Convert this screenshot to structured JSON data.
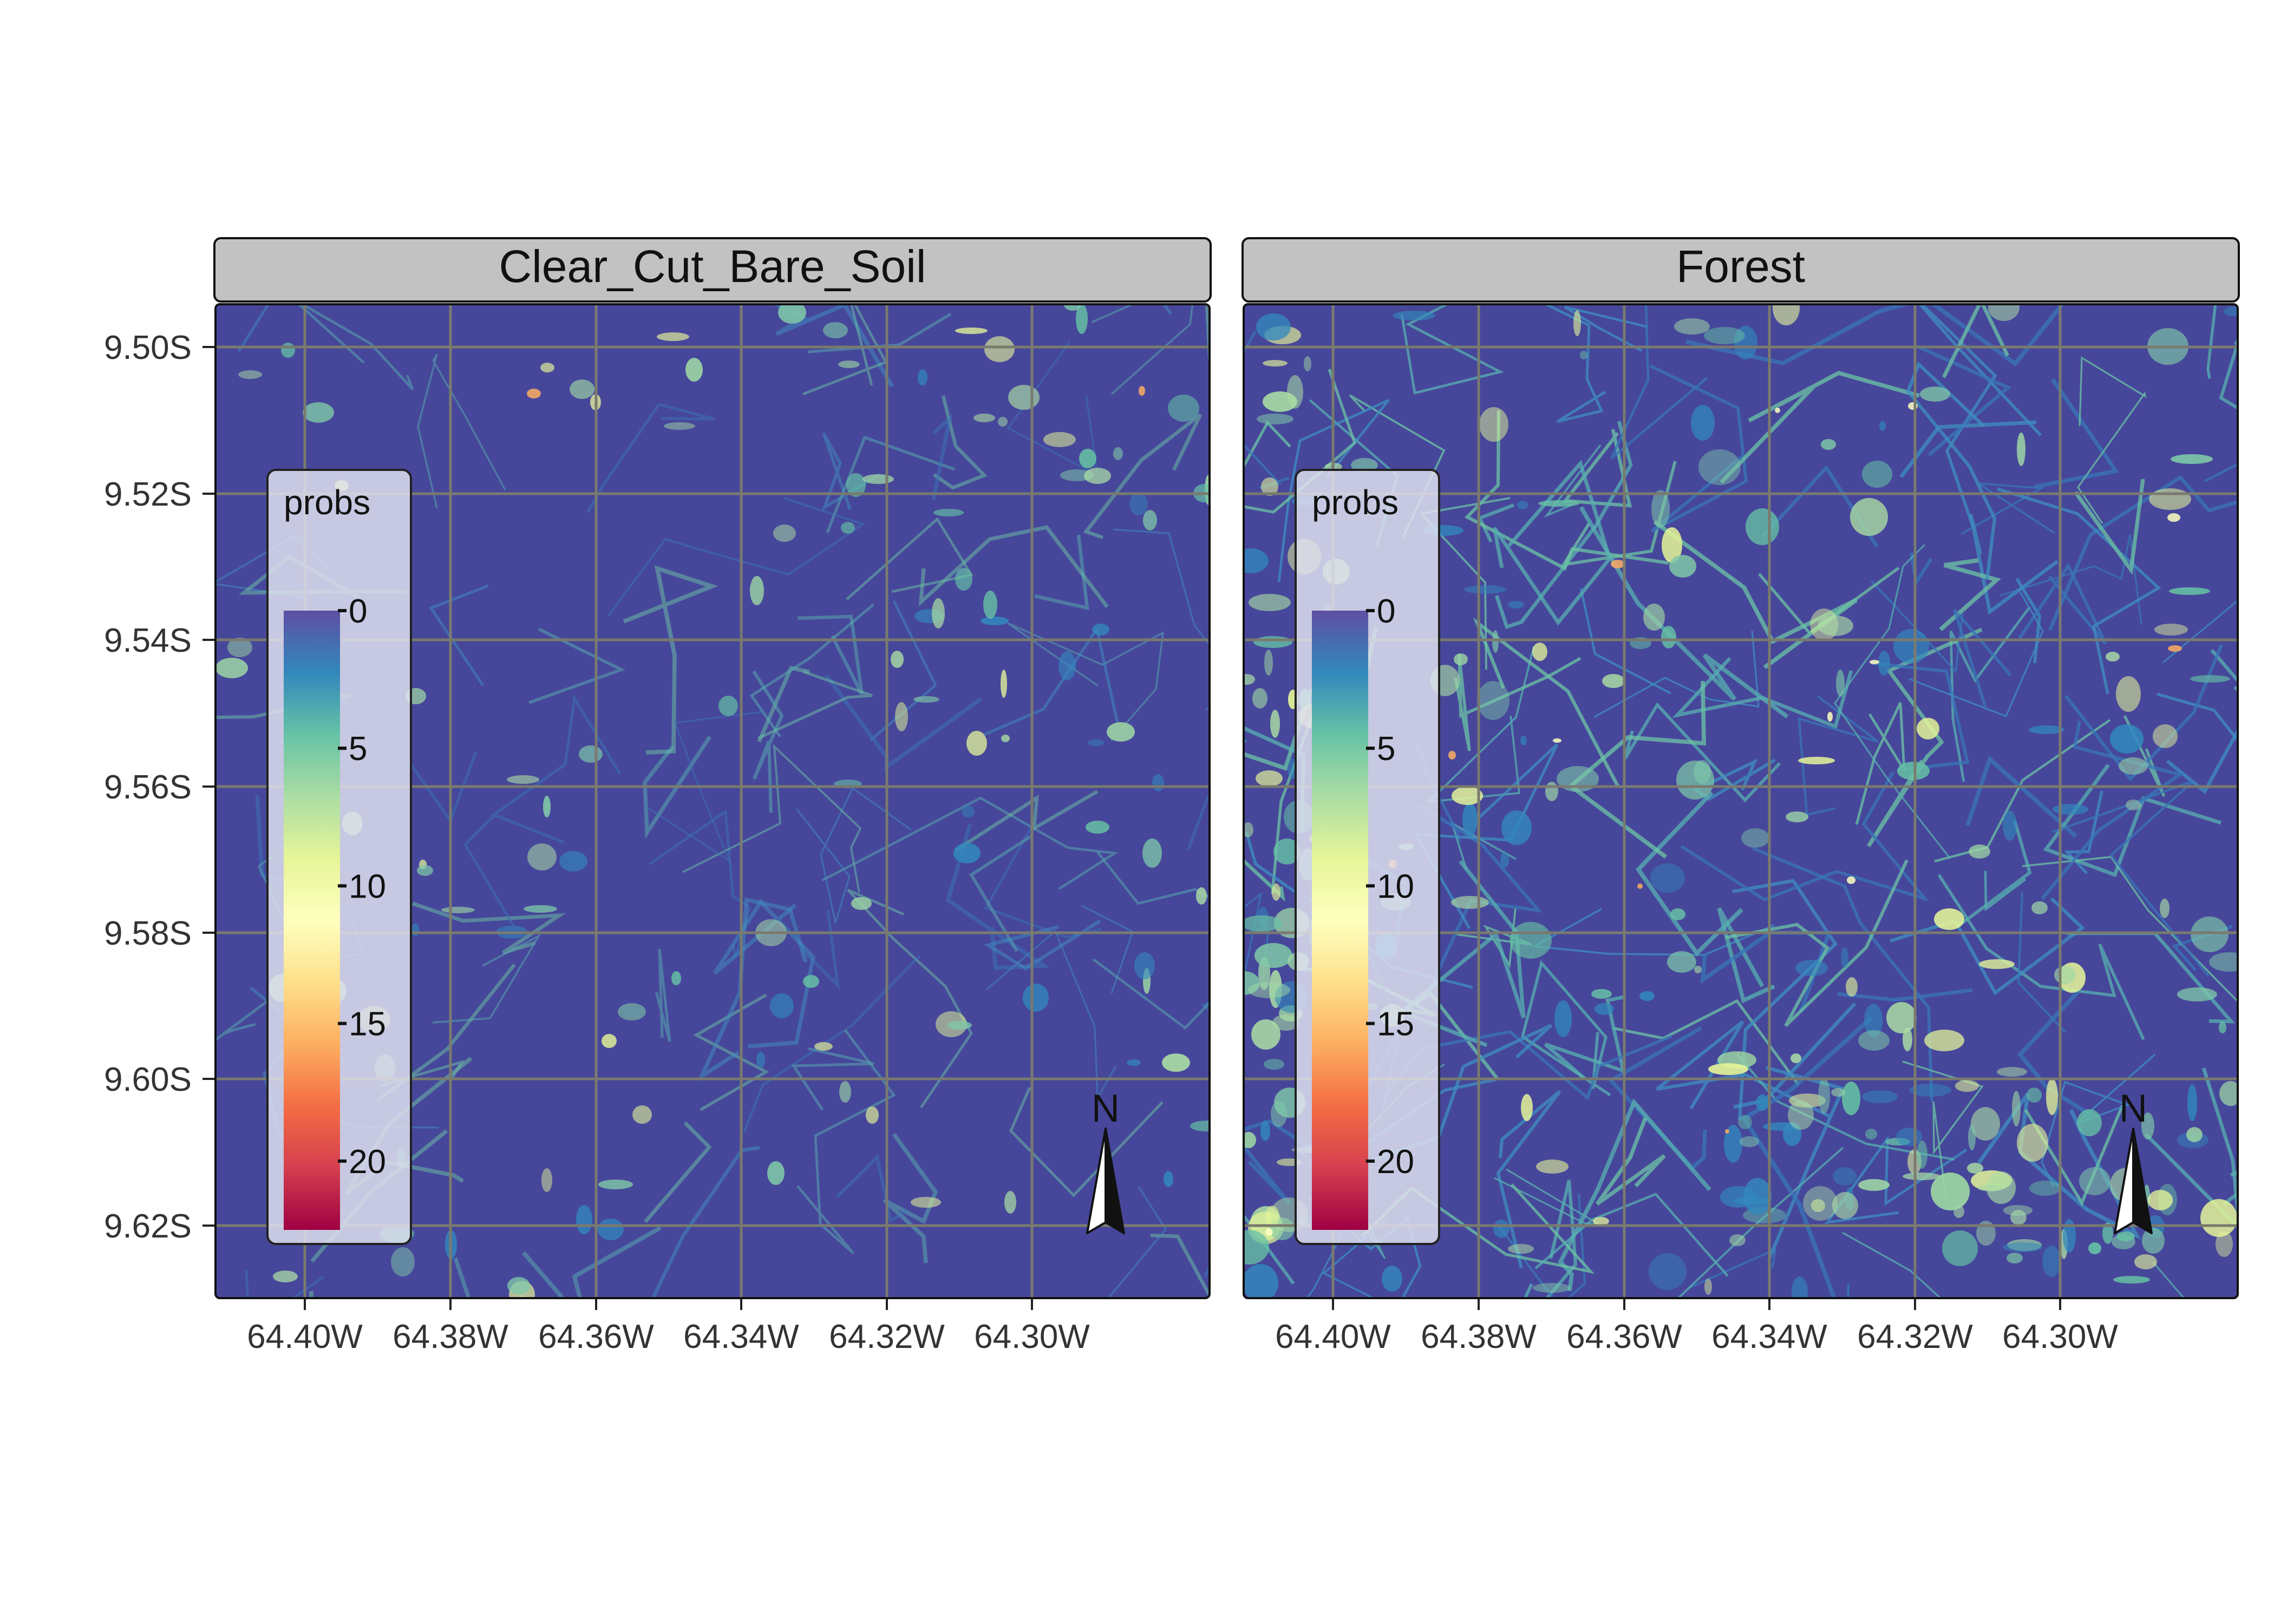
{
  "panels": [
    {
      "title": "Clear_Cut_Bare_Soil",
      "style": "sparse"
    },
    {
      "title": "Forest",
      "style": "dense"
    }
  ],
  "legend": {
    "title": "probs",
    "ticks": [
      "0",
      "5",
      "10",
      "15",
      "20"
    ],
    "tick_values": [
      0,
      5,
      10,
      15,
      20
    ],
    "range": [
      0,
      22.5
    ],
    "palette": [
      "#5e4fa2",
      "#3288bd",
      "#66c2a5",
      "#abdda4",
      "#e6f598",
      "#ffffbf",
      "#fee08b",
      "#fdae61",
      "#f46d43",
      "#d53e4f",
      "#9e0142"
    ]
  },
  "axes": {
    "lat_labels": [
      "9.50S",
      "9.52S",
      "9.54S",
      "9.56S",
      "9.58S",
      "9.60S",
      "9.62S"
    ],
    "lat_values": [
      -9.5,
      -9.52,
      -9.54,
      -9.56,
      -9.58,
      -9.6,
      -9.62
    ],
    "lon_labels": [
      "64.40W",
      "64.38W",
      "64.36W",
      "64.34W",
      "64.32W",
      "64.30W"
    ],
    "lon_values": [
      -64.4,
      -64.38,
      -64.36,
      -64.34,
      -64.32,
      -64.3
    ]
  },
  "north_arrow": {
    "label": "N"
  },
  "colors": {
    "background": "#46479a",
    "grid": "#7a7a6e",
    "strip_fill": "#c2c2c2",
    "legend_fill": "#e4e4f2"
  }
}
